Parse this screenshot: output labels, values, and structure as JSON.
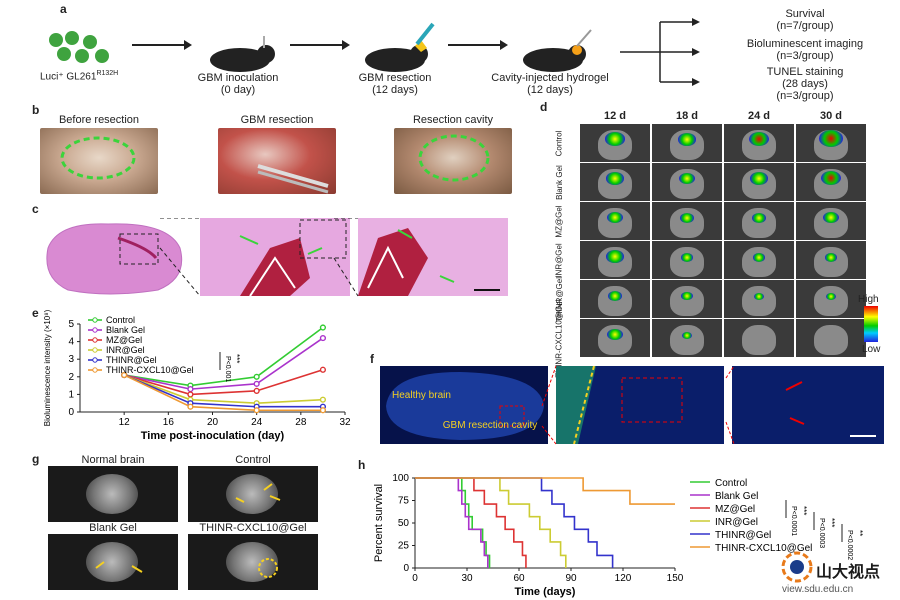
{
  "panel_a": {
    "label": "a",
    "cells": "Luci⁺ GL261",
    "cells_sup": "R132H",
    "step1": "GBM inoculation",
    "step1_time": "(0 day)",
    "step2": "GBM resection",
    "step2_time": "(12 days)",
    "step3": "Cavity-injected hydrogel",
    "step3_time": "(12 days)",
    "out1": "Survival",
    "out1_n": "(n=7/group)",
    "out2": "Bioluminescent imaging",
    "out2_n": "(n=3/group)",
    "out3": "TUNEL staining",
    "out3_days": "(28 days)",
    "out3_n": "(n=3/group)"
  },
  "panel_b": {
    "label": "b",
    "titles": [
      "Before resection",
      "GBM resection",
      "Resection cavity"
    ]
  },
  "panel_c": {
    "label": "c"
  },
  "panel_d": {
    "label": "d",
    "cols": [
      "12 d",
      "18 d",
      "24 d",
      "30 d"
    ],
    "rows": [
      "Control",
      "Blank Gel",
      "MZ@Gel",
      "INR@Gel",
      "THINR@Gel",
      "THINR-CXCL10@Gel"
    ],
    "scale_high": "High",
    "scale_low": "Low"
  },
  "panel_f": {
    "label": "f",
    "healthy": "Healthy brain",
    "cavity": "GBM resection cavity"
  },
  "panel_g": {
    "label": "g",
    "titles": [
      "Normal brain",
      "Control",
      "Blank Gel",
      "THINR-CXCL10@Gel"
    ]
  },
  "watermark": {
    "text": "山大视点",
    "url": "view.sdu.edu.cn"
  },
  "chart_data": [
    {
      "panel": "e",
      "type": "line",
      "xlabel": "Time post-inoculation (day)",
      "ylabel": "Bioluminescence intensity (×10⁸)",
      "x": [
        12,
        18,
        24,
        30
      ],
      "xlim": [
        8,
        32
      ],
      "ylim": [
        0,
        5
      ],
      "xticks": [
        12,
        16,
        20,
        24,
        28,
        32
      ],
      "yticks": [
        0,
        1,
        2,
        3,
        4,
        5
      ],
      "series": [
        {
          "name": "Control",
          "color": "#33cc33",
          "values": [
            2.1,
            1.5,
            2.0,
            4.8
          ]
        },
        {
          "name": "Blank Gel",
          "color": "#aa33cc",
          "values": [
            2.1,
            1.3,
            1.6,
            4.2
          ]
        },
        {
          "name": "MZ@Gel",
          "color": "#dd3333",
          "values": [
            2.1,
            1.0,
            1.2,
            2.4
          ]
        },
        {
          "name": "INR@Gel",
          "color": "#cccc33",
          "values": [
            2.1,
            0.7,
            0.5,
            0.7
          ]
        },
        {
          "name": "THINR@Gel",
          "color": "#3333cc",
          "values": [
            2.1,
            0.5,
            0.3,
            0.3
          ]
        },
        {
          "name": "THINR-CXCL10@Gel",
          "color": "#ee9933",
          "values": [
            2.1,
            0.3,
            0.1,
            0.1
          ]
        }
      ],
      "annotation": "P<0.001",
      "annotation_stars": "***"
    },
    {
      "panel": "h",
      "type": "line",
      "xlabel": "Time (days)",
      "ylabel": "Percent survival",
      "xlim": [
        0,
        150
      ],
      "ylim": [
        0,
        100
      ],
      "xticks": [
        0,
        30,
        60,
        90,
        120,
        150
      ],
      "yticks": [
        0,
        25,
        50,
        75,
        100
      ],
      "series": [
        {
          "name": "Control",
          "color": "#33cc33",
          "steps": [
            [
              0,
              100
            ],
            [
              27,
              100
            ],
            [
              27,
              86
            ],
            [
              29,
              86
            ],
            [
              29,
              71
            ],
            [
              31,
              71
            ],
            [
              31,
              57
            ],
            [
              33,
              57
            ],
            [
              33,
              43
            ],
            [
              39,
              43
            ],
            [
              39,
              29
            ],
            [
              41,
              29
            ],
            [
              41,
              14
            ],
            [
              43,
              14
            ],
            [
              43,
              0
            ]
          ]
        },
        {
          "name": "Blank Gel",
          "color": "#aa33cc",
          "steps": [
            [
              0,
              100
            ],
            [
              25,
              100
            ],
            [
              25,
              86
            ],
            [
              27,
              86
            ],
            [
              27,
              71
            ],
            [
              29,
              71
            ],
            [
              29,
              57
            ],
            [
              31,
              57
            ],
            [
              31,
              43
            ],
            [
              38,
              43
            ],
            [
              38,
              29
            ],
            [
              40,
              29
            ],
            [
              40,
              14
            ],
            [
              42,
              14
            ],
            [
              42,
              0
            ]
          ]
        },
        {
          "name": "MZ@Gel",
          "color": "#dd3333",
          "steps": [
            [
              0,
              100
            ],
            [
              34,
              100
            ],
            [
              34,
              86
            ],
            [
              40,
              86
            ],
            [
              40,
              71
            ],
            [
              47,
              71
            ],
            [
              47,
              57
            ],
            [
              52,
              57
            ],
            [
              52,
              43
            ],
            [
              57,
              43
            ],
            [
              57,
              29
            ],
            [
              62,
              29
            ],
            [
              62,
              14
            ],
            [
              64,
              14
            ],
            [
              64,
              0
            ]
          ]
        },
        {
          "name": "INR@Gel",
          "color": "#cccc33",
          "steps": [
            [
              0,
              100
            ],
            [
              49,
              100
            ],
            [
              49,
              86
            ],
            [
              54,
              86
            ],
            [
              54,
              71
            ],
            [
              66,
              71
            ],
            [
              66,
              57
            ],
            [
              72,
              57
            ],
            [
              72,
              43
            ],
            [
              78,
              43
            ],
            [
              78,
              29
            ],
            [
              84,
              29
            ],
            [
              84,
              14
            ],
            [
              87,
              14
            ],
            [
              87,
              0
            ]
          ]
        },
        {
          "name": "THINR@Gel",
          "color": "#3333cc",
          "steps": [
            [
              0,
              100
            ],
            [
              73,
              100
            ],
            [
              73,
              86
            ],
            [
              79,
              86
            ],
            [
              79,
              71
            ],
            [
              86,
              71
            ],
            [
              86,
              57
            ],
            [
              92,
              57
            ],
            [
              92,
              43
            ],
            [
              100,
              43
            ],
            [
              100,
              29
            ],
            [
              105,
              29
            ],
            [
              105,
              14
            ],
            [
              114,
              14
            ],
            [
              114,
              0
            ]
          ]
        },
        {
          "name": "THINR-CXCL10@Gel",
          "color": "#ee9933",
          "steps": [
            [
              0,
              100
            ],
            [
              97,
              100
            ],
            [
              97,
              86
            ],
            [
              124,
              86
            ],
            [
              124,
              71
            ],
            [
              150,
              71
            ]
          ]
        }
      ],
      "annotations": [
        {
          "text": "P<0.0001",
          "stars": "***"
        },
        {
          "text": "P<0.0003",
          "stars": "***"
        },
        {
          "text": "P<0.0002",
          "stars": "**"
        }
      ]
    }
  ]
}
